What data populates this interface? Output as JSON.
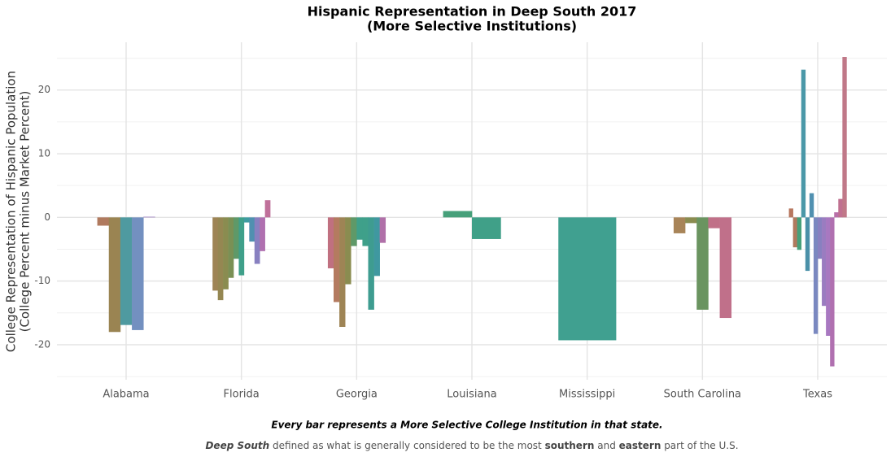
{
  "chart_data": {
    "type": "bar",
    "title_lines": [
      "Hispanic Representation in Deep South 2017",
      "(More Selective Institutions)"
    ],
    "y_label_lines": [
      "College Representation of Hispanic Population",
      "(College Percent minus Market Percent)"
    ],
    "caption": "Every bar represents a More Selective College Institution in that state.",
    "note": [
      "Deep South",
      "defined as what is generally considered to be the most",
      "southern",
      "and",
      "eastern",
      "part of the U.S."
    ],
    "note_styles": [
      "bold-italic",
      "normal",
      "bold",
      "normal",
      "bold",
      "normal"
    ],
    "categories": [
      "Alabama",
      "Florida",
      "Georgia",
      "Louisiana",
      "Mississippi",
      "South Carolina",
      "Texas"
    ],
    "values": [
      [
        -1.3,
        -18,
        -16.9,
        -17.7,
        0.1
      ],
      [
        -11.5,
        -13,
        -11.3,
        -9.5,
        -6.5,
        -9.1,
        -0.8,
        -3.8,
        -7.3,
        -5.3,
        2.7
      ],
      [
        -8,
        -13.3,
        -17.2,
        -10.5,
        -4.5,
        -3.5,
        -4.5,
        -14.5,
        -9.2,
        -4
      ],
      [
        1,
        -3.4
      ],
      [
        -19.3
      ],
      [
        -2.5,
        -0.9,
        -14.5,
        -1.7,
        -15.8
      ],
      [
        1.4,
        -4.7,
        -5.1,
        23.2,
        -8.4,
        3.8,
        -18.3,
        -6.5,
        -13.9,
        -18.6,
        -23.4,
        0.8,
        2.9,
        25.2
      ]
    ],
    "colors": [
      [
        "#b07a5e",
        "#9a8452",
        "#4f9aa0",
        "#7390c0",
        "#9a7cc0"
      ],
      [
        "#9e8455",
        "#958752",
        "#8a8c50",
        "#7a9055",
        "#5f9968",
        "#3fa08a",
        "#3e9ca0",
        "#4f90b0",
        "#8880c0",
        "#b070b0",
        "#c0709a"
      ],
      [
        "#c07080",
        "#b47b60",
        "#9e8455",
        "#8a8c50",
        "#5f9968",
        "#3fa08a",
        "#3fa08a",
        "#3e9c90",
        "#3f98a0",
        "#b070a8"
      ],
      [
        "#46a07a",
        "#40a088"
      ],
      [
        "#40a090"
      ],
      [
        "#a88458",
        "#8a8c50",
        "#6a9460",
        "#c07088",
        "#c0708a"
      ],
      [
        "#b87860",
        "#b07a5e",
        "#46a07a",
        "#4a98a8",
        "#4a90a8",
        "#5090b0",
        "#7a88c0",
        "#8880c0",
        "#9a7cc0",
        "#a878c0",
        "#b070b0",
        "#b870a8",
        "#c07090",
        "#c07888"
      ]
    ],
    "ylim": [
      -25.5,
      27.5
    ],
    "yticks": [
      -20,
      -10,
      0,
      10,
      20
    ],
    "minor_yticks": [
      -25,
      -15,
      -5,
      5,
      15,
      25
    ],
    "grid": true
  }
}
